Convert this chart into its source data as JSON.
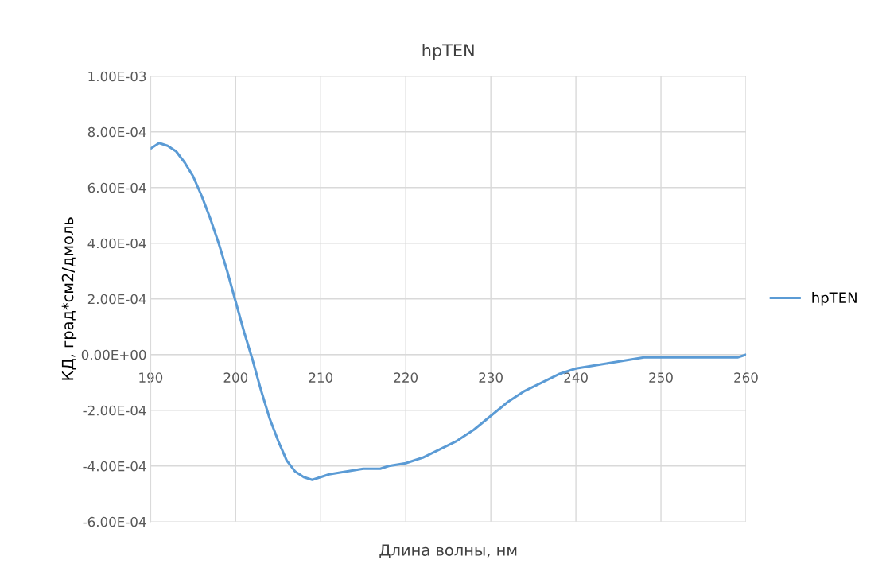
{
  "chart_data": {
    "type": "line",
    "title": "hpTEN",
    "xlabel": "Длина волны, нм",
    "ylabel": "КД, град*см2/дмоль",
    "series": [
      {
        "name": "hpTEN",
        "color": "#5b9bd5",
        "x": [
          190,
          191,
          192,
          193,
          194,
          195,
          196,
          197,
          198,
          199,
          200,
          201,
          202,
          203,
          204,
          205,
          206,
          207,
          208,
          209,
          210,
          211,
          213,
          215,
          217,
          218,
          220,
          222,
          224,
          226,
          228,
          230,
          232,
          234,
          236,
          238,
          240,
          242,
          244,
          246,
          248,
          250,
          252,
          254,
          256,
          258,
          259,
          260
        ],
        "values": [
          0.00074,
          0.00076,
          0.00075,
          0.00073,
          0.00069,
          0.00064,
          0.00057,
          0.00049,
          0.0004,
          0.0003,
          0.00019,
          8e-05,
          -2e-05,
          -0.00013,
          -0.00023,
          -0.00031,
          -0.00038,
          -0.00042,
          -0.00044,
          -0.00045,
          -0.00044,
          -0.00043,
          -0.00042,
          -0.00041,
          -0.00041,
          -0.0004,
          -0.00039,
          -0.00037,
          -0.00034,
          -0.00031,
          -0.00027,
          -0.00022,
          -0.00017,
          -0.00013,
          -0.0001,
          -7e-05,
          -5e-05,
          -4e-05,
          -3e-05,
          -2e-05,
          -1e-05,
          -1e-05,
          -1e-05,
          -1e-05,
          -1e-05,
          -1e-05,
          -1e-05,
          0
        ]
      }
    ],
    "xlim": [
      190,
      260
    ],
    "xticks": [
      190,
      200,
      210,
      220,
      230,
      240,
      250,
      260
    ],
    "ylim": [
      -0.0006,
      0.001
    ],
    "yticks": [
      {
        "value": -0.0006,
        "label": "-6.00E-04"
      },
      {
        "value": -0.0004,
        "label": "-4.00E-04"
      },
      {
        "value": -0.0002,
        "label": "-2.00E-04"
      },
      {
        "value": 0,
        "label": "0.00E+00"
      },
      {
        "value": 0.0002,
        "label": "2.00E-04"
      },
      {
        "value": 0.0004,
        "label": "4.00E-04"
      },
      {
        "value": 0.0006,
        "label": "6.00E-04"
      },
      {
        "value": 0.0008,
        "label": "8.00E-04"
      },
      {
        "value": 0.001,
        "label": "1.00E-03"
      }
    ],
    "grid": true,
    "legend": "right",
    "marker": "none",
    "line_style": "solid"
  }
}
